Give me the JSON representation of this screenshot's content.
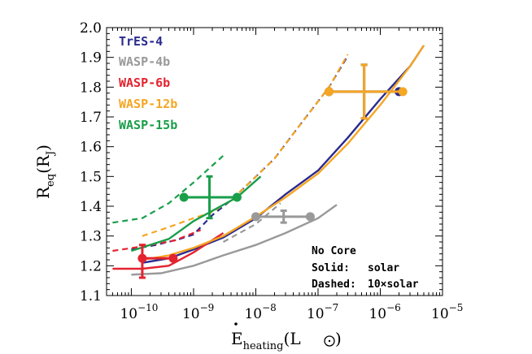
{
  "chart_data": {
    "type": "line",
    "xlabel": {
      "main": "E",
      "sub": "heating",
      "open": "(L",
      "close": ")"
    },
    "ylabel": {
      "main": "R",
      "sub": "eq",
      "open": "(R",
      "subJ": "J",
      "close": ")"
    },
    "xscale": "log",
    "xlim": [
      4e-11,
      1e-05
    ],
    "ylim": [
      1.1,
      2.0
    ],
    "grid": false,
    "legend_position": "top-left",
    "x_ticks": [
      {
        "exp": -10,
        "label": "10",
        "sup": "−10"
      },
      {
        "exp": -9,
        "label": "10",
        "sup": "−9"
      },
      {
        "exp": -8,
        "label": "10",
        "sup": "−8"
      },
      {
        "exp": -7,
        "label": "10",
        "sup": "−7"
      },
      {
        "exp": -6,
        "label": "10",
        "sup": "−6"
      },
      {
        "exp": -5,
        "label": "10",
        "sup": "−5"
      }
    ],
    "y_ticks": [
      {
        "value": 1.1,
        "label": "1.1"
      },
      {
        "value": 1.2,
        "label": "1.2"
      },
      {
        "value": 1.3,
        "label": "1.3"
      },
      {
        "value": 1.4,
        "label": "1.4"
      },
      {
        "value": 1.5,
        "label": "1.5"
      },
      {
        "value": 1.6,
        "label": "1.6"
      },
      {
        "value": 1.7,
        "label": "1.7"
      },
      {
        "value": 1.8,
        "label": "1.8"
      },
      {
        "value": 1.9,
        "label": "1.9"
      },
      {
        "value": 2.0,
        "label": "2.0"
      }
    ],
    "annotations": [
      "No Core",
      "Solid:",
      "solar",
      "Dashed:",
      "10×solar"
    ],
    "series": [
      {
        "name": "TrES-4",
        "color": "#2a2a8f",
        "solid": [
          [
            1.5e-10,
            1.21
          ],
          [
            4e-10,
            1.225
          ],
          [
            1e-09,
            1.255
          ],
          [
            3e-09,
            1.295
          ],
          [
            1e-08,
            1.36
          ],
          [
            3e-08,
            1.44
          ],
          [
            1e-07,
            1.52
          ],
          [
            3e-07,
            1.63
          ],
          [
            1e-06,
            1.76
          ],
          [
            3e-06,
            1.87
          ],
          [
            5e-06,
            1.94
          ]
        ],
        "dashed": [
          [
            1e-10,
            1.255
          ],
          [
            2.5e-10,
            1.27
          ],
          [
            6e-10,
            1.29
          ],
          [
            1e-09,
            1.305
          ],
          [
            2e-09,
            1.37
          ],
          [
            4e-09,
            1.42
          ],
          [
            8e-09,
            1.48
          ],
          [
            2e-08,
            1.56
          ],
          [
            5e-08,
            1.67
          ],
          [
            1.5e-07,
            1.8
          ],
          [
            3e-07,
            1.905
          ]
        ],
        "point": {
          "x": 5.5e-07,
          "y": 1.785,
          "xerr": [
            1.5e-07,
            2e-06
          ],
          "yerr": [
            1.695,
            1.875
          ]
        }
      },
      {
        "name": "WASP-4b",
        "color": "#999999",
        "solid": [
          [
            1e-10,
            1.17
          ],
          [
            3e-10,
            1.175
          ],
          [
            1e-09,
            1.2
          ],
          [
            3e-09,
            1.235
          ],
          [
            1e-08,
            1.27
          ],
          [
            3e-08,
            1.31
          ],
          [
            1e-07,
            1.36
          ],
          [
            2e-07,
            1.405
          ]
        ],
        "dashed": [
          [
            3e-09,
            1.28
          ],
          [
            1e-08,
            1.34
          ],
          [
            2.5e-08,
            1.41
          ]
        ],
        "point": {
          "x": 2.8e-08,
          "y": 1.365,
          "xerr": [
            1e-08,
            7.5e-08
          ],
          "yerr": [
            1.345,
            1.385
          ]
        }
      },
      {
        "name": "WASP-6b",
        "color": "#e3232f",
        "solid": [
          [
            5e-11,
            1.19
          ],
          [
            1.5e-10,
            1.19
          ],
          [
            4e-10,
            1.2
          ],
          [
            1e-09,
            1.245
          ],
          [
            3e-09,
            1.31
          ]
        ],
        "dashed": [
          [
            5e-11,
            1.25
          ],
          [
            1.5e-10,
            1.265
          ],
          [
            5e-10,
            1.285
          ],
          [
            1.3e-09,
            1.32
          ]
        ],
        "point": {
          "x": 1.5e-10,
          "y": 1.225,
          "xerr": [
            1.5e-10,
            4.7e-10
          ],
          "yerr": [
            1.16,
            1.27
          ]
        }
      },
      {
        "name": "WASP-12b",
        "color": "#f5a623",
        "solid": [
          [
            1.5e-10,
            1.22
          ],
          [
            4e-10,
            1.235
          ],
          [
            1e-09,
            1.26
          ],
          [
            3e-09,
            1.3
          ],
          [
            1e-08,
            1.365
          ],
          [
            3e-08,
            1.43
          ],
          [
            1e-07,
            1.51
          ],
          [
            3e-07,
            1.61
          ],
          [
            1e-06,
            1.74
          ],
          [
            3e-06,
            1.87
          ],
          [
            5e-06,
            1.94
          ]
        ],
        "dashed": [
          [
            1.5e-10,
            1.3
          ],
          [
            4e-10,
            1.33
          ],
          [
            1e-09,
            1.36
          ],
          [
            2e-09,
            1.38
          ],
          [
            4e-09,
            1.42
          ],
          [
            8e-09,
            1.48
          ],
          [
            2e-08,
            1.56
          ],
          [
            5e-08,
            1.67
          ],
          [
            1.5e-07,
            1.8
          ],
          [
            3e-07,
            1.91
          ]
        ],
        "point": {
          "x": 5.5e-07,
          "y": 1.785,
          "xerr": [
            1.5e-07,
            2.3e-06
          ],
          "yerr": [
            1.695,
            1.875
          ]
        }
      },
      {
        "name": "WASP-15b",
        "color": "#1a9e4a",
        "solid": [
          [
            1e-10,
            1.25
          ],
          [
            4e-10,
            1.29
          ],
          [
            1e-09,
            1.35
          ],
          [
            5e-09,
            1.43
          ],
          [
            1.2e-08,
            1.5
          ]
        ],
        "dashed": [
          [
            5e-11,
            1.345
          ],
          [
            1.5e-10,
            1.36
          ],
          [
            4e-10,
            1.41
          ],
          [
            1e-09,
            1.48
          ],
          [
            3e-09,
            1.57
          ]
        ],
        "point": {
          "x": 1.8e-09,
          "y": 1.43,
          "xerr": [
            7e-10,
            5e-09
          ],
          "yerr": [
            1.36,
            1.5
          ]
        }
      }
    ]
  }
}
